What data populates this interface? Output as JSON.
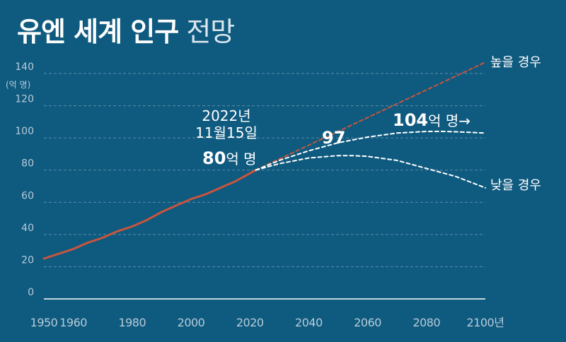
{
  "title": {
    "main": "유엔 세계 인구",
    "sub": "전망"
  },
  "chart_data": {
    "type": "line",
    "ylabel": "(억 명)",
    "ylim": [
      0,
      140
    ],
    "xlim": [
      1950,
      2100
    ],
    "y_ticks": [
      "0",
      "20",
      "40",
      "60",
      "80",
      "100",
      "120",
      "140"
    ],
    "x_ticks": [
      {
        "value": 1950,
        "label": "1950"
      },
      {
        "value": 1960,
        "label": "1960"
      },
      {
        "value": 1980,
        "label": "1980"
      },
      {
        "value": 2000,
        "label": "2000"
      },
      {
        "value": 2020,
        "label": "2020"
      },
      {
        "value": 2040,
        "label": "2040"
      },
      {
        "value": 2060,
        "label": "2060"
      },
      {
        "value": 2080,
        "label": "2080"
      },
      {
        "value": 2100,
        "label": "2100년"
      }
    ],
    "grid": true,
    "series": [
      {
        "style": "solid",
        "color": "#c8553d",
        "x": [
          1950,
          1955,
          1960,
          1965,
          1970,
          1975,
          1980,
          1985,
          1990,
          1995,
          2000,
          2005,
          2010,
          2015,
          2020,
          2022
        ],
        "y": [
          25,
          28,
          31,
          35,
          38,
          42,
          45,
          49,
          54,
          58,
          62,
          65,
          69,
          73,
          78,
          80
        ]
      },
      {
        "name": "높을 경우",
        "style": "dashed",
        "color": "#c8553d",
        "x": [
          2022,
          2100
        ],
        "y": [
          80,
          147
        ]
      },
      {
        "style": "dashed",
        "color": "#ffffff",
        "x": [
          2022,
          2030,
          2040,
          2050,
          2060,
          2070,
          2080,
          2086,
          2090,
          2100
        ],
        "y": [
          80,
          86,
          92,
          97,
          100.5,
          103,
          104,
          104,
          103.8,
          103
        ]
      },
      {
        "name": "낮을 경우",
        "style": "dashed",
        "color": "#ffffff",
        "x": [
          2022,
          2030,
          2040,
          2050,
          2055,
          2060,
          2070,
          2080,
          2090,
          2100
        ],
        "y": [
          80,
          84,
          87.5,
          89,
          89,
          88.5,
          86,
          81,
          76,
          69
        ]
      }
    ],
    "annotations": {
      "date_line1": "2022년",
      "date_line2": "11월15일",
      "current_num": "80",
      "current_unit": "억 명",
      "mid_value": "97",
      "peak_num": "104",
      "peak_unit": "억 명→",
      "high_label": "높을 경우",
      "low_label": "낮을 경우"
    },
    "colors": {
      "background": "#0f5a7f",
      "actual": "#c8553d",
      "projection": "#ffffff",
      "grid": "#5d8ca8",
      "axis_text": "#b7ccd9"
    }
  }
}
